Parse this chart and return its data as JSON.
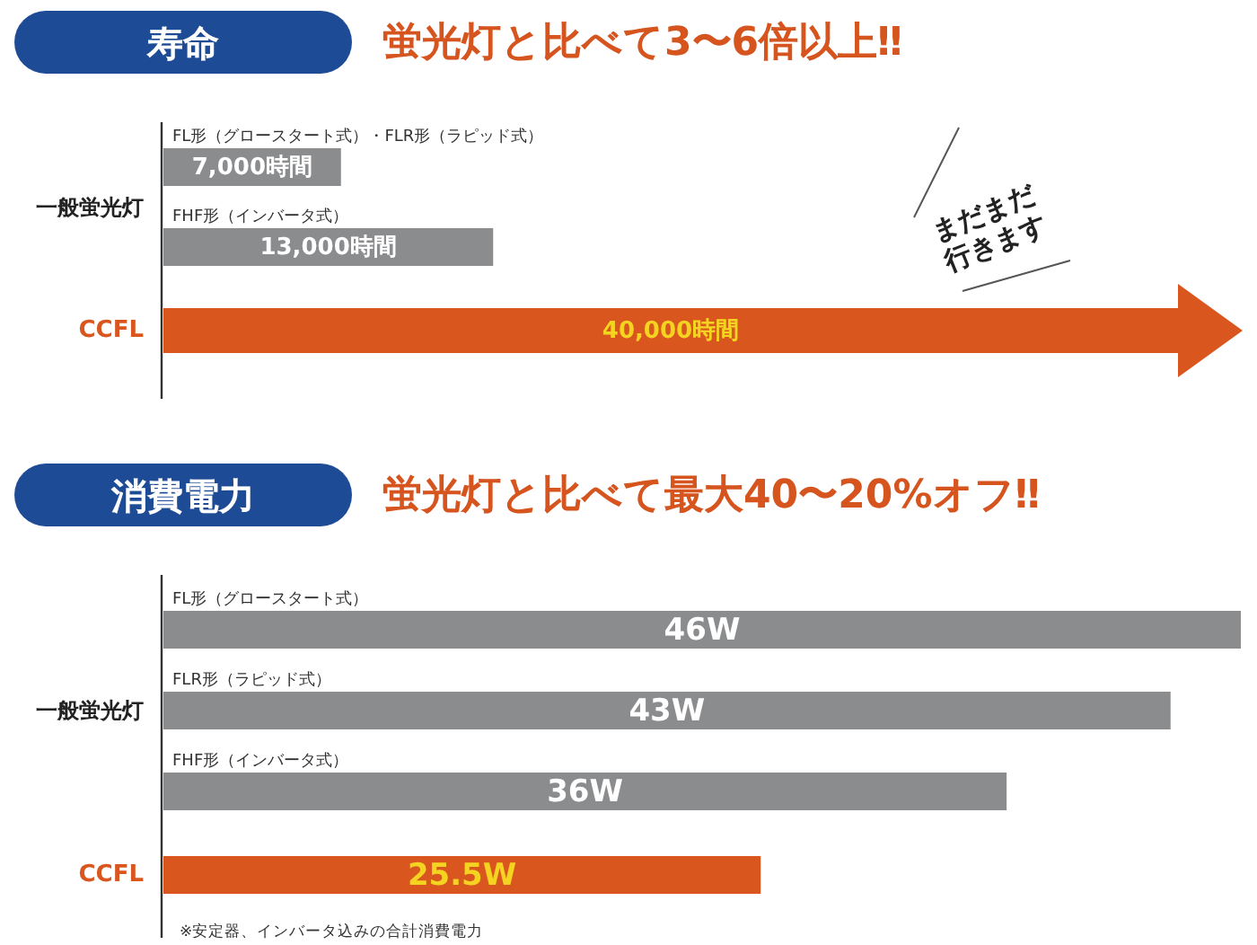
{
  "chart_data": [
    {
      "type": "bar",
      "orientation": "horizontal",
      "title": "寿命",
      "subtitle": "蛍光灯と比べて3〜6倍以上‼",
      "categories": [
        "FL形（グロースタート式）・FLR形（ラピッド式）",
        "FHF形（インバータ式）",
        "CCFL"
      ],
      "values": [
        7000,
        13000,
        40000
      ],
      "colors": [
        "#8b8c8e",
        "#8b8c8e",
        "#d9571f"
      ],
      "value_labels": [
        "7,000時間",
        "13,000時間",
        "40,000時間"
      ],
      "annotations": [
        "一般蛍光灯",
        "まだまだ\n行きます"
      ]
    },
    {
      "type": "bar",
      "orientation": "horizontal",
      "title": "消費電力",
      "subtitle": "蛍光灯と比べて最大40〜20%オフ‼",
      "categories": [
        "FL形（グロースタート式）",
        "FLR形（ラピッド式）",
        "FHF形（インバータ式）",
        "CCFL"
      ],
      "values": [
        46,
        43,
        36,
        25.5
      ],
      "colors": [
        "#8b8c8e",
        "#8b8c8e",
        "#8b8c8e",
        "#d9571f"
      ],
      "value_labels": [
        "46W",
        "43W",
        "36W",
        "25.5W"
      ],
      "annotations": [
        "一般蛍光灯",
        "※安定器、インバータ込みの合計消費電力"
      ]
    }
  ]
}
